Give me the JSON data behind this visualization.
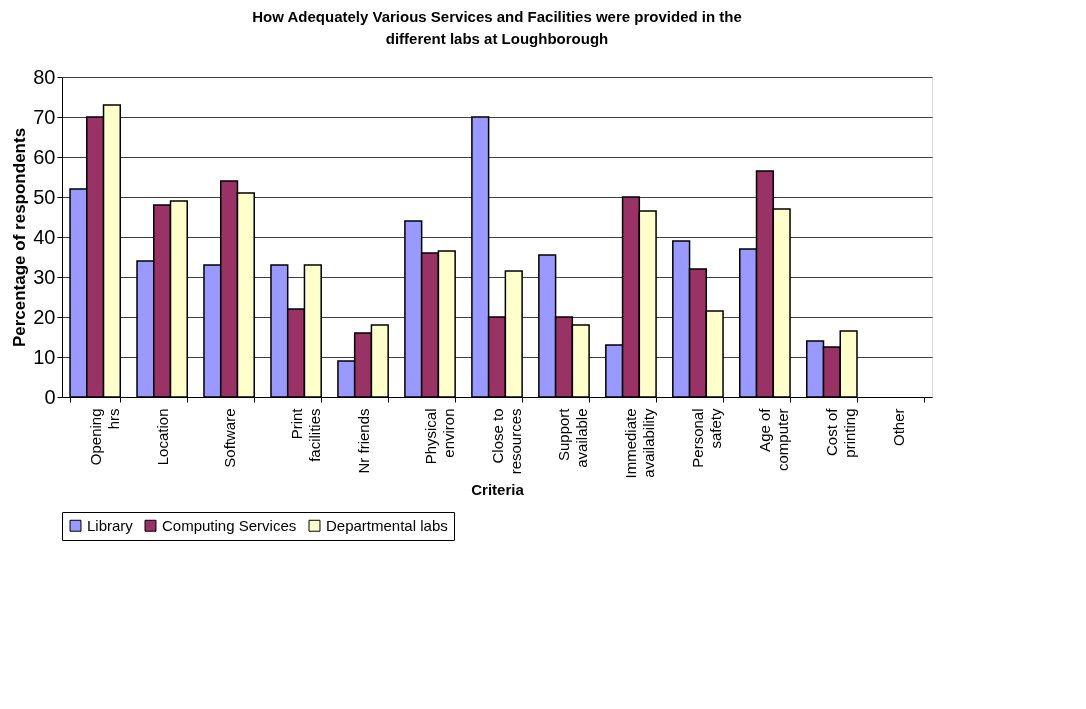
{
  "chart_data": {
    "type": "bar",
    "title": "How Adequately Various Services and Facilities were provided in the different labs at Loughborough",
    "xlabel": "Criteria",
    "ylabel": "Percentage of respondents",
    "categories": [
      "Opening hrs",
      "Location",
      "Software",
      "Print facilities",
      "Nr friends",
      "Physical environ",
      "Close to resources",
      "Support available",
      "Immediate availability",
      "Personal safety",
      "Age of computer",
      "Cost of printing",
      "Other"
    ],
    "series": [
      {
        "name": "Library",
        "color": "#9999ff",
        "values": [
          52,
          34,
          33,
          33,
          9,
          44,
          70,
          35.5,
          13,
          39,
          37,
          14,
          null
        ]
      },
      {
        "name": "Computing Services",
        "color": "#993366",
        "values": [
          70,
          48,
          54,
          22,
          16,
          36,
          20,
          20,
          50,
          32,
          56.5,
          12.5,
          null
        ]
      },
      {
        "name": "Departmental labs",
        "color": "#ffffcc",
        "values": [
          73,
          49,
          51,
          33,
          18,
          36.5,
          31.5,
          18,
          46.5,
          21.5,
          47,
          16.5,
          null
        ]
      }
    ],
    "ylim": [
      0,
      80
    ],
    "yticks": [
      0,
      10,
      20,
      30,
      40,
      50,
      60,
      70,
      80
    ],
    "grid": "y",
    "legend": "bottom"
  }
}
